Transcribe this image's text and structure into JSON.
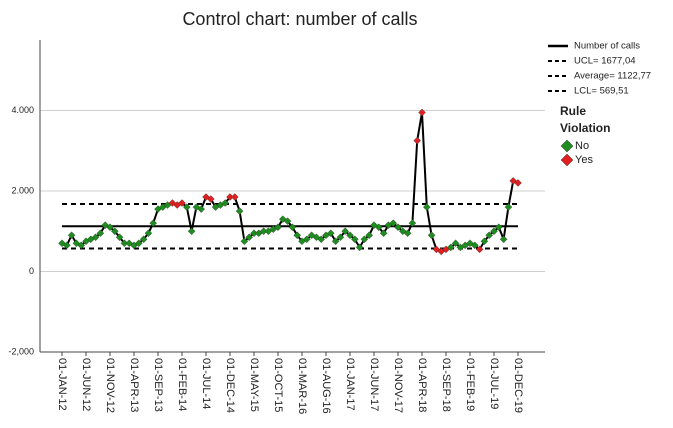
{
  "chart_data": {
    "type": "control",
    "title": "Control chart: number of calls",
    "categories": [
      "01-JAN-12",
      null,
      null,
      null,
      null,
      "01-JUN-12",
      null,
      null,
      null,
      null,
      "01-NOV-12",
      null,
      null,
      null,
      null,
      "01-APR-13",
      null,
      null,
      null,
      null,
      "01-SEP-13",
      null,
      null,
      null,
      null,
      "01-FEB-14",
      null,
      null,
      null,
      null,
      "01-JUL-14",
      null,
      null,
      null,
      null,
      "01-DEC-14",
      null,
      null,
      null,
      null,
      "01-MAY-15",
      null,
      null,
      null,
      null,
      "01-OCT-15",
      null,
      null,
      null,
      null,
      "01-MAR-16",
      null,
      null,
      null,
      null,
      "01-AUG-16",
      null,
      null,
      null,
      null,
      "01-JAN-17",
      null,
      null,
      null,
      null,
      "01-JUN-17",
      null,
      null,
      null,
      null,
      "01-NOV-17",
      null,
      null,
      null,
      null,
      "01-APR-18",
      null,
      null,
      null,
      null,
      "01-SEP-18",
      null,
      null,
      null,
      null,
      "01-FEB-19",
      null,
      null,
      null,
      null,
      "01-JUL-19",
      null,
      null,
      null,
      null,
      "01-DEC-19"
    ],
    "series": [
      {
        "name": "Number of calls",
        "color": "#000000",
        "values": [
          700,
          650,
          900,
          700,
          650,
          750,
          800,
          850,
          950,
          1150,
          1100,
          1000,
          850,
          700,
          700,
          650,
          700,
          800,
          950,
          1200,
          1550,
          1600,
          1650,
          1700,
          1650,
          1700,
          1600,
          1000,
          1600,
          1550,
          1850,
          1800,
          1600,
          1650,
          1700,
          1850,
          1850,
          1500,
          750,
          850,
          950,
          950,
          1000,
          1000,
          1050,
          1100,
          1300,
          1250,
          1100,
          900,
          750,
          800,
          900,
          850,
          800,
          900,
          950,
          750,
          850,
          1000,
          900,
          800,
          600,
          800,
          900,
          1150,
          1100,
          950,
          1150,
          1200,
          1100,
          1000,
          950,
          1200,
          3250,
          3950,
          1600,
          900,
          550,
          500,
          550,
          600,
          700,
          600,
          650,
          700,
          650,
          550,
          750,
          900,
          1000,
          1100,
          800,
          1600,
          2250,
          2200
        ],
        "violation": [
          0,
          0,
          0,
          0,
          0,
          0,
          0,
          0,
          0,
          0,
          0,
          0,
          0,
          0,
          0,
          0,
          0,
          0,
          0,
          0,
          0,
          0,
          0,
          1,
          1,
          1,
          0,
          0,
          0,
          0,
          1,
          1,
          0,
          0,
          0,
          1,
          1,
          0,
          0,
          0,
          0,
          0,
          0,
          0,
          0,
          0,
          0,
          0,
          0,
          0,
          0,
          0,
          0,
          0,
          0,
          0,
          0,
          0,
          0,
          0,
          0,
          0,
          0,
          0,
          0,
          0,
          0,
          0,
          0,
          0,
          0,
          0,
          0,
          0,
          1,
          1,
          0,
          0,
          1,
          1,
          1,
          0,
          0,
          0,
          0,
          0,
          0,
          1,
          0,
          0,
          0,
          0,
          0,
          0,
          1,
          1
        ]
      }
    ],
    "limits": [
      {
        "name": "UCL= 1677,04",
        "value": 1677.04,
        "dashed": true
      },
      {
        "name": "Average= 1122,77",
        "value": 1122.77,
        "dashed": false
      },
      {
        "name": "LCL= 569,51",
        "value": 569.51,
        "dashed": true
      }
    ],
    "violation_legend": {
      "title": [
        "Rule",
        "Violation"
      ],
      "items": [
        {
          "name": "No",
          "color": "#1e8c1e"
        },
        {
          "name": "Yes",
          "color": "#e02020"
        }
      ]
    },
    "ylim": [
      -2000,
      5750
    ],
    "yticks": [
      {
        "value": -2000,
        "label": "-2,000"
      },
      0,
      {
        "value": 2000,
        "label": "2.000"
      },
      {
        "value": 4000,
        "label": "4.000"
      }
    ],
    "grid": true
  }
}
